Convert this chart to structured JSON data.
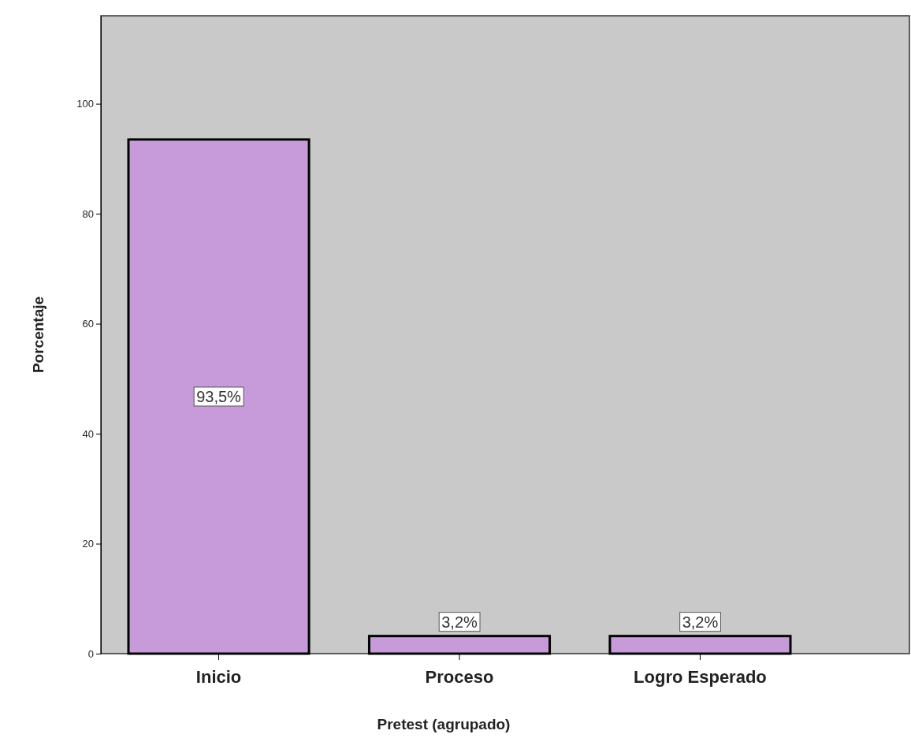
{
  "chart_data": {
    "type": "bar",
    "xlabel": "Pretest (agrupado)",
    "ylabel": "Porcentaje",
    "categories": [
      "Inicio",
      "Proceso",
      "Logro Esperado"
    ],
    "values": [
      93.5,
      3.2,
      3.2
    ],
    "value_labels": [
      "93,5%",
      "3,2%",
      "3,2%"
    ],
    "color": "#c79bd9",
    "ylim": [
      0,
      116
    ],
    "yticks": [
      0,
      20,
      40,
      60,
      80,
      100
    ],
    "grid": false
  }
}
